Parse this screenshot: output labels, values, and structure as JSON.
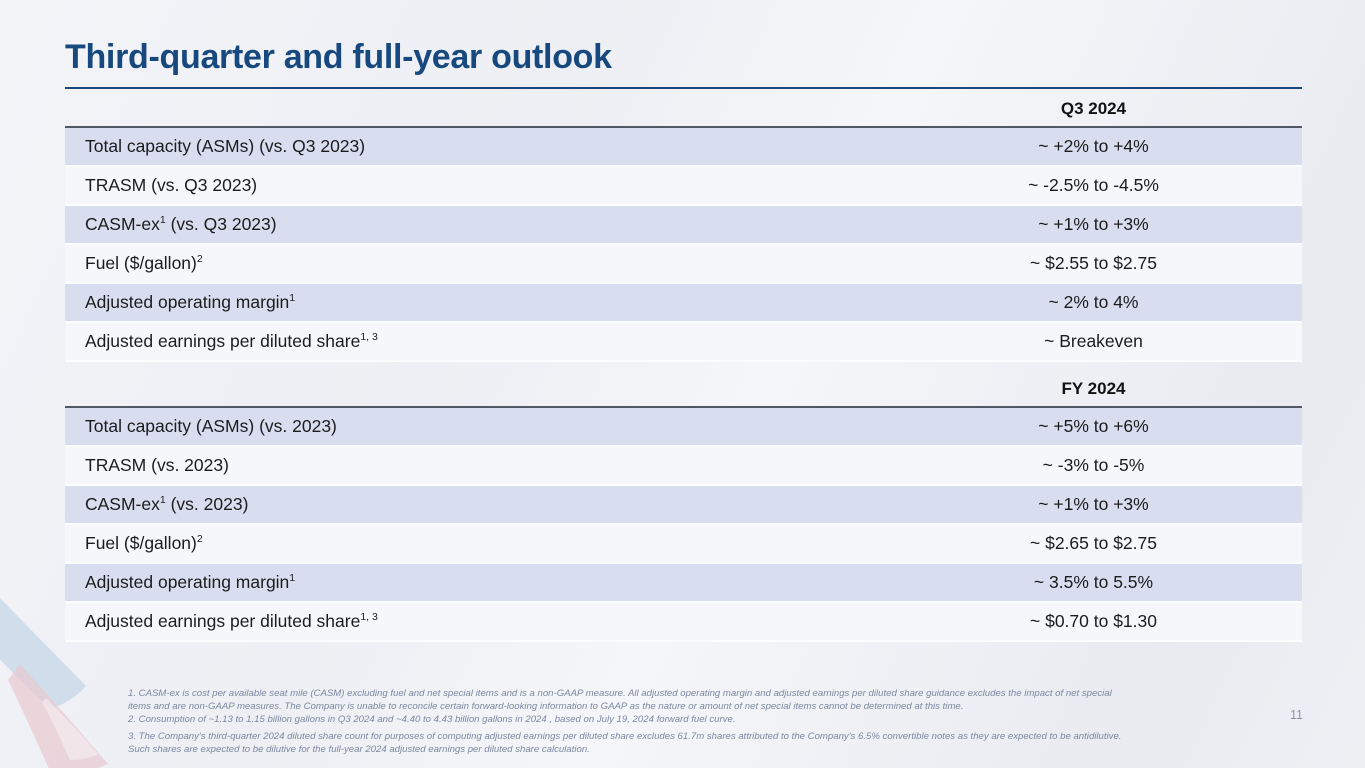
{
  "slide": {
    "title": "Third-quarter and full-year outlook",
    "page_number": "11"
  },
  "tables": [
    {
      "header": "Q3 2024",
      "rows": [
        {
          "pre": "Total capacity (ASMs) (vs. Q3 2023)",
          "sup": "",
          "post": "",
          "value": "~ +2% to +4%"
        },
        {
          "pre": "TRASM (vs. Q3 2023)",
          "sup": "",
          "post": "",
          "value": "~ -2.5% to -4.5%"
        },
        {
          "pre": "CASM-ex",
          "sup": "1",
          "post": " (vs. Q3 2023)",
          "value": "~ +1% to +3%"
        },
        {
          "pre": "Fuel ($/gallon)",
          "sup": "2",
          "post": "",
          "value": "~ $2.55 to $2.75"
        },
        {
          "pre": "Adjusted operating margin",
          "sup": "1",
          "post": "",
          "value": "~ 2% to 4%"
        },
        {
          "pre": "Adjusted earnings per diluted share",
          "sup": "1, 3",
          "post": "",
          "value": "~ Breakeven"
        }
      ]
    },
    {
      "header": "FY 2024",
      "rows": [
        {
          "pre": "Total capacity (ASMs) (vs. 2023)",
          "sup": "",
          "post": "",
          "value": "~ +5% to +6%"
        },
        {
          "pre": "TRASM (vs. 2023)",
          "sup": "",
          "post": "",
          "value": "~ -3% to -5%"
        },
        {
          "pre": "CASM-ex",
          "sup": "1",
          "post": " (vs. 2023)",
          "value": "~ +1% to +3%"
        },
        {
          "pre": "Fuel ($/gallon)",
          "sup": "2",
          "post": "",
          "value": "~ $2.65 to $2.75"
        },
        {
          "pre": "Adjusted operating margin",
          "sup": "1",
          "post": "",
          "value": "~ 3.5% to 5.5%"
        },
        {
          "pre": "Adjusted earnings per diluted share",
          "sup": "1, 3",
          "post": "",
          "value": "~ $0.70 to $1.30"
        }
      ]
    }
  ],
  "footnotes": {
    "lines": [
      "1. CASM-ex is cost per available seat mile (CASM) excluding fuel and net special items and is a non-GAAP measure. All adjusted operating margin and adjusted earnings per diluted share guidance excludes the impact of net special",
      "items and are non-GAAP measures. The Company is unable to reconcile certain forward-looking information to GAAP as the nature or amount of net special items cannot be determined at this time.",
      "2. Consumption of  ~1.13 to 1.15 billion gallons in Q3 2024 and ~4.40 to 4.43 billion gallons in 2024 , based on July 19, 2024 forward fuel curve.",
      "3. The Company's third-quarter 2024 diluted share count for purposes of computing adjusted earnings per diluted share excludes 61.7m shares attributed to the Company's 6.5% convertible notes as they are expected to be antidilutive.",
      "Such shares are expected to be dilutive for the full-year 2024 adjusted earnings per diluted share calculation."
    ]
  },
  "colors": {
    "title_navy": "#17497E",
    "table_border": "#4F5864",
    "row_lavender": "#D8DEEF",
    "row_light": "#F6F7FA",
    "footnote_gray": "#7C87A0",
    "watermark_blue": "#A9C4DC",
    "watermark_red": "#E4AFB8"
  }
}
